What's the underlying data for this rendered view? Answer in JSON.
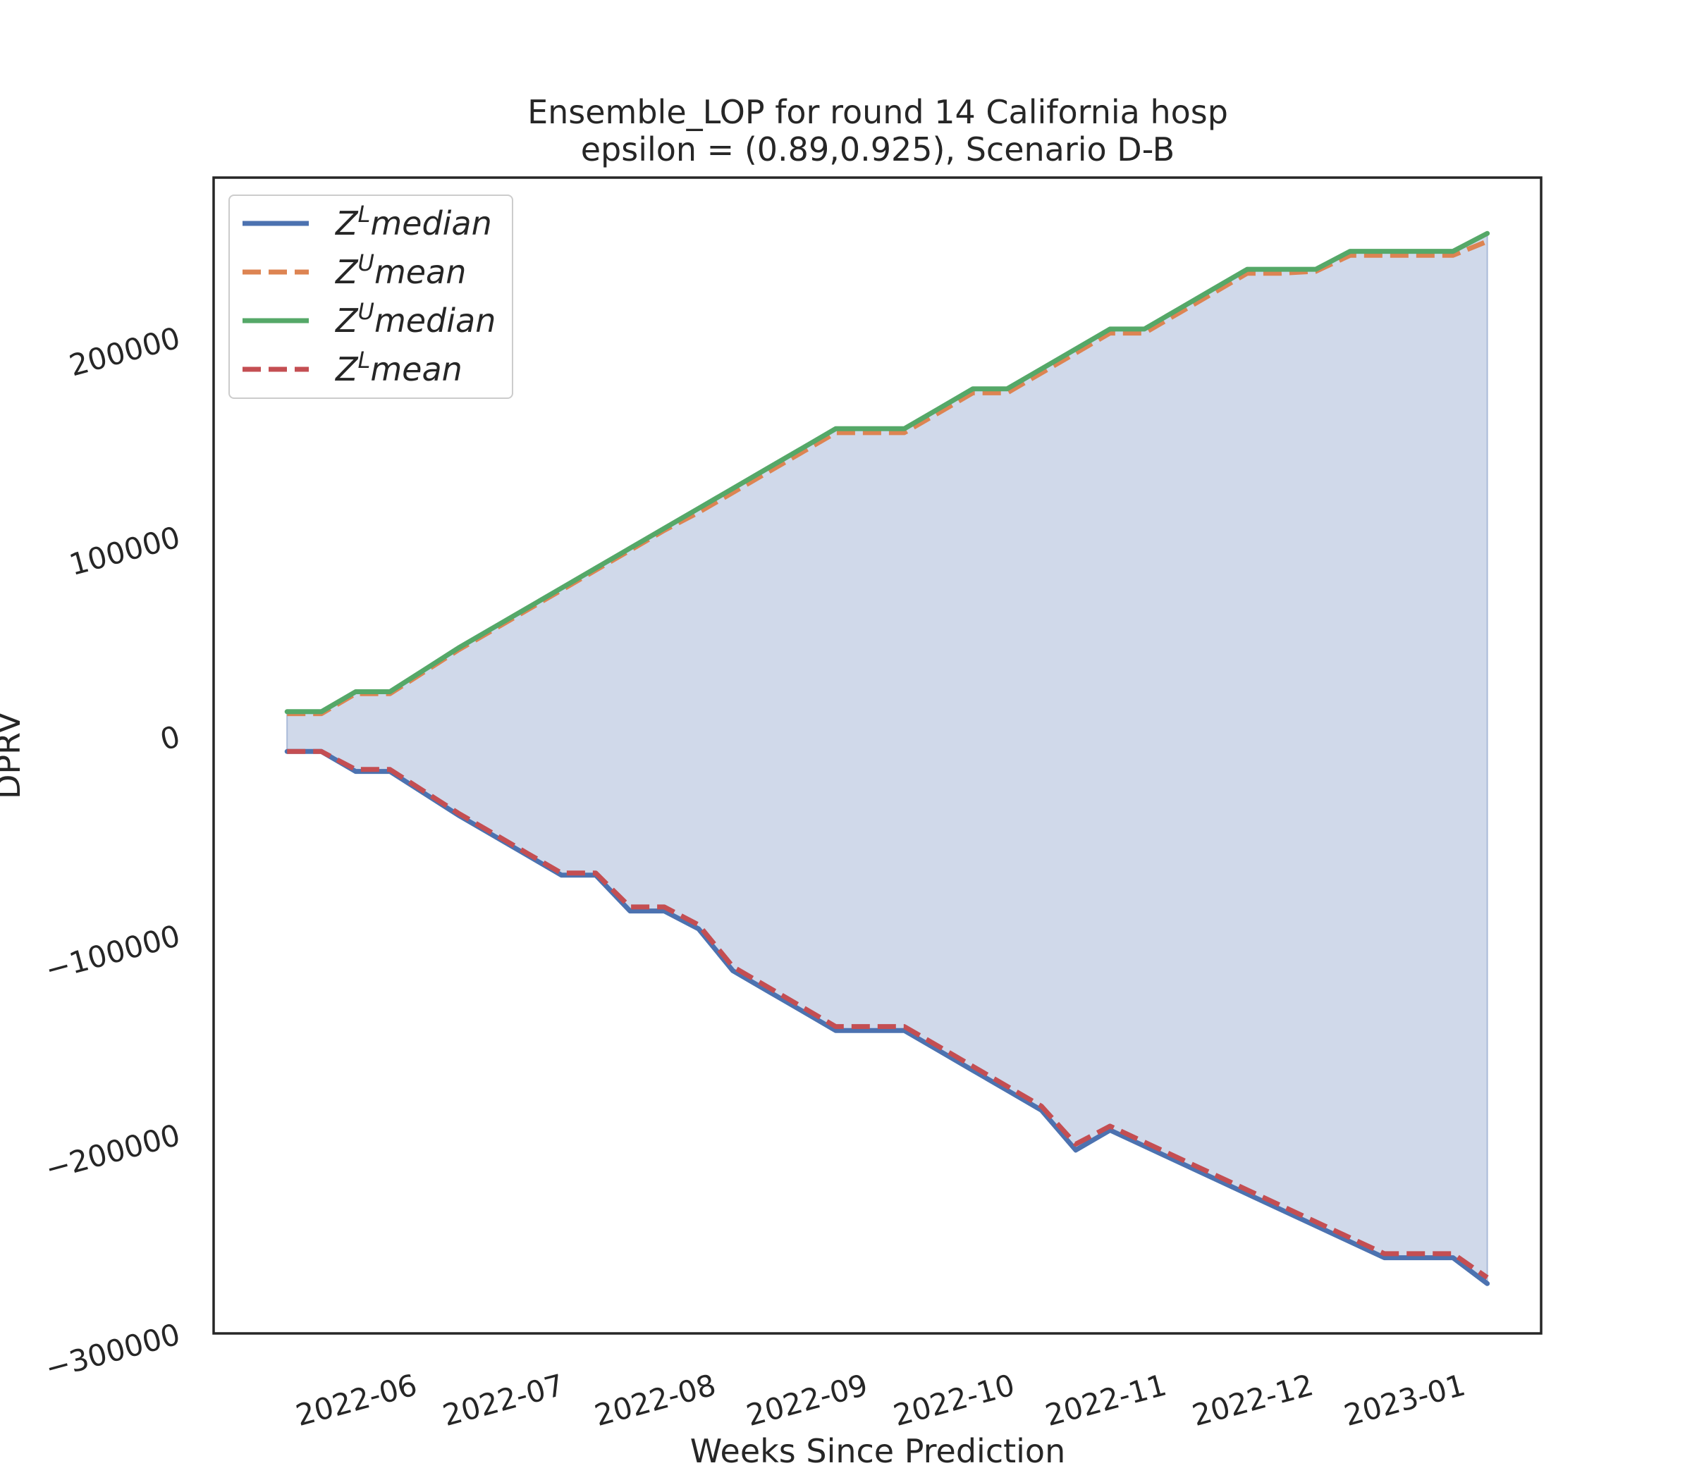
{
  "chart_data": {
    "type": "line",
    "title": "Ensemble_LOP for round 14 California  hosp",
    "subtitle": "epsilon = (0.89,0.925), Scenario D-B",
    "xlabel": "Weeks Since Prediction",
    "ylabel": "DPRV",
    "x_tick_labels": [
      "2022-06",
      "2022-07",
      "2022-08",
      "2022-09",
      "2022-10",
      "2022-11",
      "2022-12",
      "2023-01"
    ],
    "x_tick_dates": [
      "2022-06-01",
      "2022-07-01",
      "2022-08-01",
      "2022-09-01",
      "2022-10-01",
      "2022-11-01",
      "2022-12-01",
      "2023-01-01"
    ],
    "y_tick_labels": [
      "200000",
      "100000",
      "0",
      "−100000",
      "−200000",
      "−300000"
    ],
    "y_tick_values": [
      200000,
      100000,
      0,
      -100000,
      -200000,
      -300000
    ],
    "xlim": [
      "2022-04-23",
      "2023-01-19"
    ],
    "ylim": [
      -300000,
      280000
    ],
    "grid": false,
    "legend": "top-left",
    "x": [
      "2022-05-08",
      "2022-05-15",
      "2022-05-22",
      "2022-05-29",
      "2022-06-05",
      "2022-06-12",
      "2022-06-19",
      "2022-06-26",
      "2022-07-03",
      "2022-07-10",
      "2022-07-17",
      "2022-07-24",
      "2022-07-31",
      "2022-08-07",
      "2022-08-14",
      "2022-08-21",
      "2022-08-28",
      "2022-09-04",
      "2022-09-11",
      "2022-09-18",
      "2022-09-25",
      "2022-10-02",
      "2022-10-09",
      "2022-10-16",
      "2022-10-23",
      "2022-10-30",
      "2022-11-06",
      "2022-11-13",
      "2022-11-20",
      "2022-11-27",
      "2022-12-04",
      "2022-12-11",
      "2022-12-18",
      "2022-12-25",
      "2023-01-01",
      "2023-01-08"
    ],
    "series": [
      {
        "name": "Z^L median",
        "color": "#4c72b0",
        "style": "solid",
        "values": [
          -8000,
          -8000,
          -18000,
          -18000,
          -29000,
          -40000,
          -50000,
          -60000,
          -70000,
          -70000,
          -88000,
          -88000,
          -97000,
          -118000,
          -128000,
          -138000,
          -148000,
          -148000,
          -148000,
          -158000,
          -168000,
          -178000,
          -188000,
          -208000,
          -198000,
          -206000,
          -214000,
          -222000,
          -230000,
          -238000,
          -246000,
          -254000,
          -262000,
          -262000,
          -262000,
          -275000
        ]
      },
      {
        "name": "Z^U mean",
        "color": "#dd8452",
        "style": "dashed",
        "values": [
          11000,
          11000,
          21000,
          21000,
          32000,
          43000,
          53000,
          63000,
          73000,
          83000,
          93000,
          103000,
          112000,
          122000,
          132000,
          142000,
          152000,
          152000,
          152000,
          162000,
          172000,
          172000,
          182000,
          192000,
          202000,
          202000,
          212000,
          222000,
          232000,
          232000,
          233000,
          241000,
          241000,
          241000,
          241000,
          248000
        ]
      },
      {
        "name": "Z^U median",
        "color": "#55a868",
        "style": "solid",
        "values": [
          12000,
          12000,
          22000,
          22000,
          33000,
          44000,
          54000,
          64000,
          74000,
          84000,
          94000,
          104000,
          114000,
          124000,
          134000,
          144000,
          154000,
          154000,
          154000,
          164000,
          174000,
          174000,
          184000,
          194000,
          204000,
          204000,
          214000,
          224000,
          234000,
          234000,
          234000,
          243000,
          243000,
          243000,
          243000,
          252000
        ]
      },
      {
        "name": "Z^L mean",
        "color": "#c44e52",
        "style": "dashed",
        "values": [
          -8000,
          -8000,
          -17000,
          -17000,
          -28000,
          -39000,
          -49000,
          -59000,
          -69000,
          -69000,
          -86000,
          -86000,
          -95000,
          -116000,
          -126000,
          -136000,
          -146000,
          -146000,
          -146000,
          -156000,
          -166000,
          -176000,
          -186000,
          -205000,
          -196000,
          -204000,
          -212000,
          -220000,
          -228000,
          -236000,
          -244000,
          -252000,
          -260000,
          -260000,
          -260000,
          -272000
        ]
      }
    ],
    "fill_between": {
      "upper": "Z^U median",
      "lower": "Z^L median",
      "color": "#d0d9ea"
    },
    "legend_entries": [
      {
        "base": "Z",
        "sup": "L",
        "word": "median",
        "color": "#4c72b0",
        "style": "solid"
      },
      {
        "base": "Z",
        "sup": "U",
        "word": "mean",
        "color": "#dd8452",
        "style": "dashed"
      },
      {
        "base": "Z",
        "sup": "U",
        "word": "median",
        "color": "#55a868",
        "style": "solid"
      },
      {
        "base": "Z",
        "sup": "L",
        "word": "mean",
        "color": "#c44e52",
        "style": "dashed"
      }
    ]
  }
}
